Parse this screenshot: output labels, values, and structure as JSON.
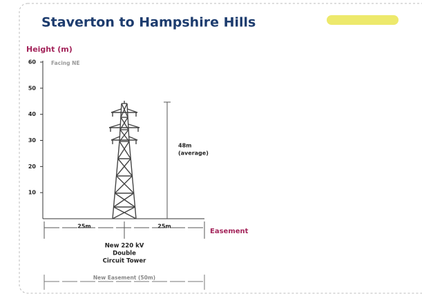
{
  "header": {
    "title": "Staverton to Hampshire Hills"
  },
  "axis": {
    "label": "Height (m)",
    "ylim": [
      0,
      60
    ],
    "yticks": [
      10,
      20,
      30,
      40,
      50,
      60
    ]
  },
  "note": "Facing NE",
  "height_label": [
    "48m",
    "(average)"
  ],
  "easement": {
    "left": "25m",
    "right": "25m",
    "label": "Easement"
  },
  "tower_label": [
    "New 220 kV",
    "Double",
    "Circuit Tower"
  ],
  "new_easement": "New Easement (50m)"
}
